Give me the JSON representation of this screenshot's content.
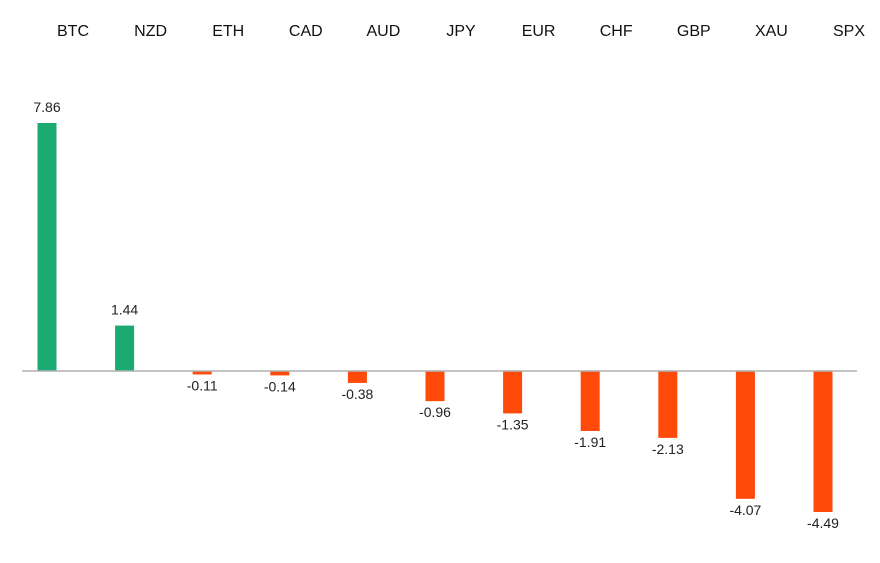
{
  "chart_data": {
    "type": "bar",
    "categories": [
      "BTC",
      "NZD",
      "ETH",
      "CAD",
      "AUD",
      "JPY",
      "EUR",
      "CHF",
      "GBP",
      "XAU",
      "SPX"
    ],
    "values": [
      7.86,
      1.44,
      -0.11,
      -0.14,
      -0.38,
      -0.96,
      -1.35,
      -1.91,
      -2.13,
      -4.07,
      -4.49
    ],
    "value_labels": [
      "7.86",
      "1.44",
      "-0.11",
      "-0.14",
      "-0.38",
      "-0.96",
      "-1.35",
      "-1.91",
      "-2.13",
      "-4.07",
      "-4.49"
    ],
    "title": "",
    "xlabel": "",
    "ylabel": "",
    "ylim": [
      -4.49,
      7.86
    ],
    "category_labels_position": "top",
    "grid": false,
    "legend": "none",
    "colors": {
      "positive": "#1aaa72",
      "negative": "#ff4a0a",
      "baseline": "#b0b0b0"
    }
  }
}
